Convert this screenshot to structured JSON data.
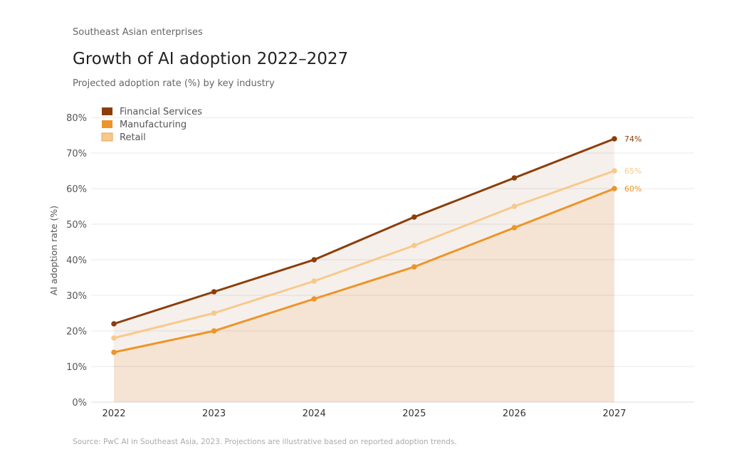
{
  "header": {
    "kicker": "Southeast Asian enterprises",
    "title": "Growth of AI adoption 2022–2027",
    "subtitle": "Projected adoption rate (%) by key industry"
  },
  "footer": {
    "source": "Source: PwC AI in Southeast Asia, 2023. Projections are illustrative based on reported adoption trends."
  },
  "chart_data": {
    "type": "line",
    "title": "Growth of AI adoption 2022–2027",
    "xlabel": "",
    "ylabel": "AI adoption rate (%)",
    "x": [
      "2022",
      "2023",
      "2024",
      "2025",
      "2026",
      "2027"
    ],
    "ylim": [
      0,
      80
    ],
    "yticks": [
      0,
      10,
      20,
      30,
      40,
      50,
      60,
      70,
      80
    ],
    "ytick_labels": [
      "0%",
      "10%",
      "20%",
      "30%",
      "40%",
      "50%",
      "60%",
      "70%",
      "80%"
    ],
    "grid": true,
    "legend": "top-left",
    "series": [
      {
        "name": "Financial Services",
        "color": "#8B3E08",
        "fill_opacity": 0.08,
        "values": [
          22,
          31,
          40,
          52,
          63,
          74
        ],
        "end_label": "74%"
      },
      {
        "name": "Retail",
        "color": "#F8C98C",
        "fill_opacity": 0,
        "values": [
          18,
          25,
          34,
          44,
          55,
          65
        ],
        "end_label": "65%"
      },
      {
        "name": "Manufacturing",
        "color": "#EE9428",
        "fill_opacity": 0.12,
        "values": [
          14,
          20,
          29,
          38,
          49,
          60
        ],
        "end_label": "60%"
      }
    ],
    "legend_order": [
      "Financial Services",
      "Manufacturing",
      "Retail"
    ]
  }
}
